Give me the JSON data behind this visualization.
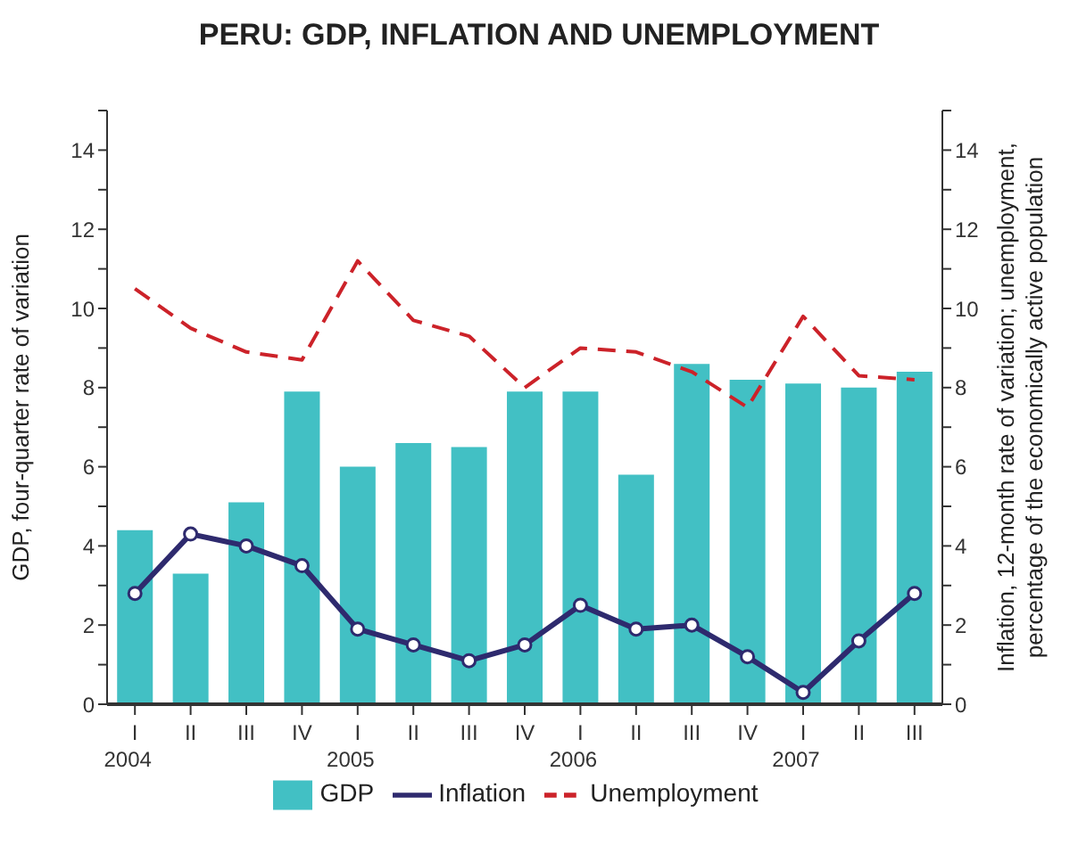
{
  "chart_data": {
    "type": "bar",
    "title": "PERU: GDP, INFLATION AND UNEMPLOYMENT",
    "ylabel": "GDP, four-quarter rate of variation",
    "y2label": "Inflation, 12-month rate of variation; unemployment, percentage of the economically active population",
    "categories": [
      "I\n2004",
      "II",
      "III",
      "IV",
      "I\n2005",
      "II",
      "III",
      "IV",
      "I\n2006",
      "II",
      "III",
      "IV",
      "I\n2007",
      "II",
      "III"
    ],
    "series": [
      {
        "name": "GDP",
        "color": "#42c0c4",
        "values": [
          4.4,
          3.3,
          5.1,
          7.9,
          6.0,
          6.6,
          6.5,
          7.9,
          7.9,
          5.8,
          8.6,
          8.2,
          8.1,
          8.0,
          8.4
        ]
      },
      {
        "name": "Inflation",
        "type": "line",
        "axis": "y2",
        "color": "#2e2a6e",
        "marker": "circle",
        "line_style": "solid",
        "values": [
          2.8,
          4.3,
          4.0,
          3.5,
          1.9,
          1.5,
          1.1,
          1.5,
          2.5,
          1.9,
          2.0,
          1.2,
          0.3,
          1.6,
          2.8
        ]
      },
      {
        "name": "Unemployment",
        "type": "line",
        "axis": "y2",
        "color": "#cc2229",
        "marker": "none",
        "line_style": "dashed",
        "values": [
          10.5,
          9.5,
          8.9,
          8.7,
          11.2,
          9.7,
          9.3,
          8.0,
          9.0,
          8.9,
          8.4,
          7.5,
          9.8,
          8.3,
          8.2
        ]
      }
    ],
    "ylim": [
      0,
      15
    ],
    "yticks": [
      0,
      {
        "value": 1,
        "label": null
      },
      2,
      {
        "value": 3,
        "label": null
      },
      4,
      {
        "value": 5,
        "label": null
      },
      6,
      {
        "value": 7,
        "label": null
      },
      8,
      {
        "value": 9,
        "label": null
      },
      10,
      {
        "value": 11,
        "label": null
      },
      12,
      {
        "value": 13,
        "label": null
      },
      14,
      {
        "value": 15,
        "label": null
      }
    ],
    "y2lim": [
      0,
      15
    ],
    "y2ticks": [
      0,
      {
        "value": 1,
        "label": null
      },
      2,
      {
        "value": 3,
        "label": null
      },
      4,
      {
        "value": 5,
        "label": null
      },
      6,
      {
        "value": 7,
        "label": null
      },
      8,
      {
        "value": 9,
        "label": null
      },
      10,
      {
        "value": 11,
        "label": null
      },
      12,
      {
        "value": 13,
        "label": null
      },
      14,
      {
        "value": 15,
        "label": null
      }
    ],
    "grid": false,
    "legend": "bottom"
  }
}
